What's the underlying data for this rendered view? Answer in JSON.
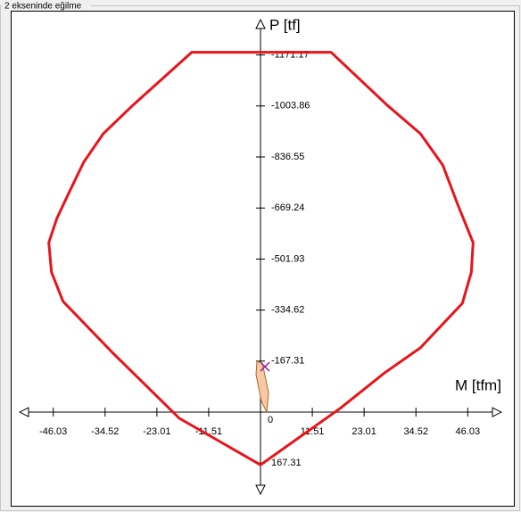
{
  "chart_data": {
    "type": "interaction",
    "title": "2 ekseninde eğilme",
    "xlabel": "M [tfm]",
    "ylabel": "P [tf]",
    "xlim": [
      -53.5,
      53.5
    ],
    "ylim": [
      269,
      -1287
    ],
    "xticks": [
      -46.03,
      -34.52,
      -23.01,
      -11.51,
      0,
      11.51,
      23.01,
      34.52,
      46.03
    ],
    "yticks": [
      -1171.17,
      -1003.86,
      -836.55,
      -669.24,
      -501.93,
      -334.62,
      -167.31,
      167.31
    ],
    "series": [
      {
        "color": "#e8141b",
        "fill": "none",
        "x": [
          -15.28,
          15.67,
          28.17,
          35.52,
          40.48,
          43.85,
          47.22,
          46.83,
          44.84,
          35.52,
          27.58,
          17.66,
          0,
          -18.06,
          -32.94,
          -43.85,
          -46.43,
          -47.02,
          -45.24,
          -42.46,
          -39.29,
          -34.92,
          -28.37
        ],
        "y": [
          -1180,
          -1180,
          -1006,
          -913,
          -810,
          -679,
          -556,
          -459,
          -357,
          -211,
          -129,
          -12,
          173,
          20,
          -196,
          -363,
          -459,
          -556,
          -635,
          -722,
          -819,
          -913,
          -1006
        ]
      },
      {
        "color": "#b5651d",
        "fill": "#f6c9a8",
        "x": [
          -0.79,
          0.4,
          1.79,
          1.39,
          0.2,
          -0.99
        ],
        "y": [
          -166.7,
          -160.9,
          -64,
          0,
          -35,
          -123
        ]
      }
    ],
    "point": {
      "x": 0.99,
      "y": -149,
      "color": "#8e2a9e"
    }
  }
}
